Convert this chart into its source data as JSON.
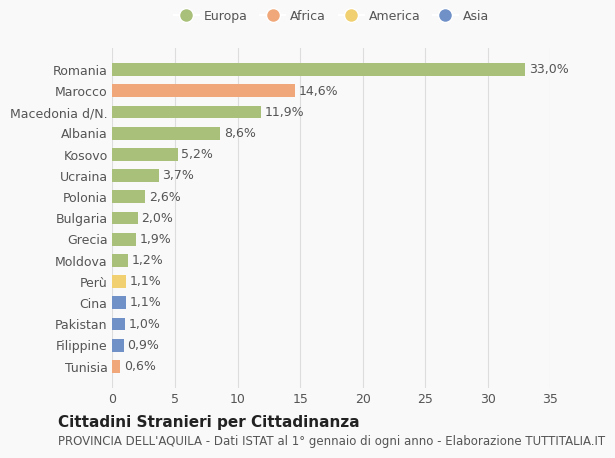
{
  "categories": [
    "Romania",
    "Marocco",
    "Macedonia d/N.",
    "Albania",
    "Kosovo",
    "Ucraina",
    "Polonia",
    "Bulgaria",
    "Grecia",
    "Moldova",
    "Perù",
    "Cina",
    "Pakistan",
    "Filippine",
    "Tunisia"
  ],
  "values": [
    33.0,
    14.6,
    11.9,
    8.6,
    5.2,
    3.7,
    2.6,
    2.0,
    1.9,
    1.2,
    1.1,
    1.1,
    1.0,
    0.9,
    0.6
  ],
  "labels": [
    "33,0%",
    "14,6%",
    "11,9%",
    "8,6%",
    "5,2%",
    "3,7%",
    "2,6%",
    "2,0%",
    "1,9%",
    "1,2%",
    "1,1%",
    "1,1%",
    "1,0%",
    "0,9%",
    "0,6%"
  ],
  "colors": [
    "#a8c07a",
    "#f0a87a",
    "#a8c07a",
    "#a8c07a",
    "#a8c07a",
    "#a8c07a",
    "#a8c07a",
    "#a8c07a",
    "#a8c07a",
    "#a8c07a",
    "#f0d070",
    "#7090c8",
    "#7090c8",
    "#7090c8",
    "#f0a87a"
  ],
  "legend_labels": [
    "Europa",
    "Africa",
    "America",
    "Asia"
  ],
  "legend_colors": [
    "#a8c07a",
    "#f0a87a",
    "#f0d070",
    "#7090c8"
  ],
  "title": "Cittadini Stranieri per Cittadinanza",
  "subtitle": "PROVINCIA DELL'AQUILA - Dati ISTAT al 1° gennaio di ogni anno - Elaborazione TUTTITALIA.IT",
  "xlim": [
    0,
    35
  ],
  "xticks": [
    0,
    5,
    10,
    15,
    20,
    25,
    30,
    35
  ],
  "background_color": "#f9f9f9",
  "grid_color": "#dddddd",
  "bar_height": 0.6,
  "label_fontsize": 9,
  "tick_fontsize": 9,
  "title_fontsize": 11,
  "subtitle_fontsize": 8.5
}
